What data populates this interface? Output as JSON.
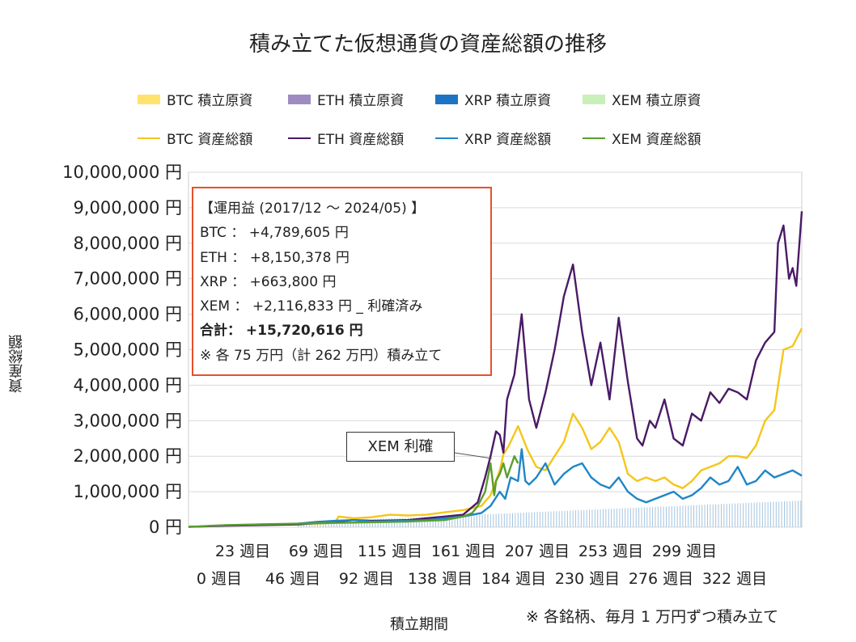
{
  "chart_data": {
    "type": "line",
    "title": "積み立てた仮想通貨の資産総額の推移",
    "ylabel": "資産総額",
    "xlabel": "積立期間",
    "ylim": [
      0,
      10000000
    ],
    "xlim": [
      0,
      335
    ],
    "grid": true,
    "legend_position": "top",
    "y_ticks": [
      "10,000,000 円",
      "9,000,000 円",
      "8,000,000 円",
      "7,000,000 円",
      "6,000,000 円",
      "5,000,000 円",
      "4,000,000 円",
      "3,000,000 円",
      "2,000,000 円",
      "1,000,000 円",
      "0 円"
    ],
    "x_ticks_top": [
      "23 週目",
      "69 週目",
      "115 週目",
      "161 週目",
      "207 週目",
      "253 週目",
      "299 週目"
    ],
    "x_ticks_bottom": [
      "0 週目",
      "46 週目",
      "92 週目",
      "138 週目",
      "184 週目",
      "230 週目",
      "276 週目",
      "322 週目"
    ],
    "legend": [
      {
        "label": "BTC  積立原資",
        "kind": "area",
        "color": "#ffe36e"
      },
      {
        "label": "ETH  積立原資",
        "kind": "area",
        "color": "#9e8cc0"
      },
      {
        "label": "XRP  積立原資",
        "kind": "area",
        "color": "#1c74c4"
      },
      {
        "label": "XEM  積立原資",
        "kind": "area",
        "color": "#c8f0b8"
      },
      {
        "label": "BTC  資産総額",
        "kind": "line",
        "color": "#f5c61a"
      },
      {
        "label": "ETH  資産総額",
        "kind": "line",
        "color": "#4a1a66"
      },
      {
        "label": "XRP  資産総額",
        "kind": "line",
        "color": "#1e86c8"
      },
      {
        "label": "XEM  資産総額",
        "kind": "line",
        "color": "#5a9e2e"
      }
    ],
    "series": [
      {
        "name": "BTC  資産総額",
        "color": "#f5c61a",
        "x": [
          0,
          20,
          40,
          60,
          70,
          80,
          82,
          90,
          100,
          110,
          120,
          130,
          140,
          150,
          160,
          165,
          170,
          172,
          175,
          180,
          185,
          190,
          195,
          200,
          205,
          210,
          215,
          220,
          225,
          230,
          235,
          240,
          245,
          250,
          255,
          260,
          265,
          270,
          275,
          280,
          285,
          290,
          295,
          300,
          305,
          310,
          315,
          320,
          325,
          330,
          335
        ],
        "y": [
          10000,
          50000,
          80000,
          90000,
          100000,
          120000,
          300000,
          250000,
          280000,
          350000,
          330000,
          350000,
          420000,
          480000,
          600000,
          900000,
          1600000,
          2050000,
          2300000,
          2850000,
          2200000,
          1700000,
          1600000,
          2000000,
          2400000,
          3200000,
          2800000,
          2200000,
          2400000,
          2800000,
          2400000,
          1500000,
          1300000,
          1400000,
          1300000,
          1400000,
          1200000,
          1100000,
          1300000,
          1600000,
          1700000,
          1800000,
          2000000,
          2000000,
          1950000,
          2300000,
          3000000,
          3300000,
          5000000,
          5100000,
          5600000
        ]
      },
      {
        "name": "ETH  資産総額",
        "color": "#4a1a66",
        "x": [
          0,
          20,
          40,
          60,
          80,
          90,
          100,
          110,
          120,
          130,
          140,
          150,
          158,
          162,
          165,
          168,
          170,
          172,
          174,
          178,
          182,
          186,
          190,
          195,
          200,
          205,
          210,
          215,
          220,
          225,
          230,
          235,
          240,
          245,
          248,
          252,
          255,
          260,
          265,
          270,
          275,
          280,
          285,
          290,
          295,
          300,
          305,
          310,
          315,
          320,
          322,
          325,
          328,
          330,
          332,
          335
        ],
        "y": [
          10000,
          40000,
          60000,
          80000,
          150000,
          200000,
          180000,
          190000,
          200000,
          250000,
          300000,
          350000,
          700000,
          1400000,
          2000000,
          2700000,
          2600000,
          2100000,
          3600000,
          4300000,
          6000000,
          3600000,
          2800000,
          3800000,
          5000000,
          6500000,
          7400000,
          5500000,
          4000000,
          5200000,
          3600000,
          5900000,
          4100000,
          2500000,
          2300000,
          3000000,
          2800000,
          3600000,
          2500000,
          2300000,
          3200000,
          3000000,
          3800000,
          3500000,
          3900000,
          3800000,
          3600000,
          4700000,
          5200000,
          5500000,
          8000000,
          8500000,
          7000000,
          7300000,
          6800000,
          8900000
        ]
      },
      {
        "name": "XRP  資産総額",
        "color": "#1e86c8",
        "x": [
          60,
          70,
          80,
          90,
          100,
          110,
          120,
          130,
          140,
          150,
          160,
          165,
          170,
          173,
          176,
          180,
          182,
          184,
          186,
          188,
          190,
          195,
          200,
          205,
          210,
          215,
          220,
          225,
          230,
          235,
          240,
          245,
          250,
          255,
          260,
          265,
          270,
          275,
          280,
          285,
          290,
          295,
          300,
          305,
          310,
          315,
          320,
          325,
          330,
          335
        ],
        "y": [
          100000,
          150000,
          180000,
          200000,
          160000,
          170000,
          180000,
          200000,
          250000,
          300000,
          400000,
          600000,
          1000000,
          800000,
          1400000,
          1300000,
          2200000,
          1300000,
          1200000,
          1300000,
          1400000,
          1800000,
          1200000,
          1500000,
          1700000,
          1800000,
          1400000,
          1200000,
          1100000,
          1400000,
          1000000,
          800000,
          700000,
          800000,
          900000,
          1000000,
          800000,
          900000,
          1100000,
          1400000,
          1200000,
          1300000,
          1700000,
          1200000,
          1300000,
          1600000,
          1400000,
          1500000,
          1600000,
          1450000
        ]
      },
      {
        "name": "XEM  資産総額",
        "color": "#5a9e2e",
        "x": [
          0,
          20,
          40,
          60,
          80,
          100,
          120,
          140,
          150,
          155,
          158,
          162,
          165,
          167,
          168,
          170,
          172,
          174,
          176,
          178,
          180
        ],
        "y": [
          10000,
          60000,
          80000,
          100000,
          120000,
          140000,
          160000,
          200000,
          300000,
          400000,
          600000,
          1000000,
          1800000,
          900000,
          1300000,
          1500000,
          1800000,
          1400000,
          1700000,
          2000000,
          1800000
        ]
      }
    ],
    "area_series": [
      {
        "name": "積立原資",
        "color": "#1c74c4",
        "x": [
          0,
          335
        ],
        "y": [
          0,
          750000
        ]
      }
    ]
  },
  "infobox": {
    "line1": "【運用益 (2017/12 ～ 2024/05) 】",
    "line2": "BTC ： +4,789,605 円",
    "line3": "ETH ： +8,150,378 円",
    "line4": "XRP ： +663,800 円",
    "line5": "XEM ： +2,116,833 円 _ 利確済み",
    "line6": "合計： +15,720,616 円",
    "line7": "※ 各 75 万円（計 262 万円）積み立て"
  },
  "callout": "XEM 利確",
  "footnote": "※ 各銘柄、毎月 1 万円ずつ積み立て"
}
